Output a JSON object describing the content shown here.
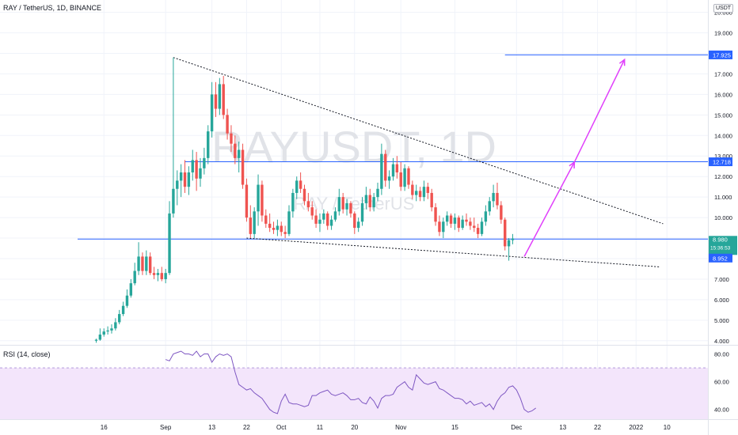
{
  "header": {
    "symbol": "RAY / TetherUS, 1D, BINANCE",
    "currency_unit": "USDT"
  },
  "rsi_label": "RSI (14, close)",
  "watermark": {
    "ticker": "RAYUSDT, 1D",
    "name": "RAY / TetherUS"
  },
  "colors": {
    "up": "#26a69a",
    "down": "#ef5350",
    "hline": "#2962ff",
    "projection": "#e040fb",
    "rsi_line": "#7e57c2",
    "rsi_band": "#f3e5fb",
    "watermark": "#e1e3e8",
    "grid": "#f0f3fa"
  },
  "price_labels": {
    "target": "17.925",
    "resistance": "12.718",
    "current": "8.980",
    "countdown": "15:36:53",
    "support": "8.952"
  },
  "chart_data": {
    "type": "candlestick",
    "title": "RAY / TetherUS, 1D, BINANCE",
    "price_axis": {
      "ylim": [
        3.8,
        20.6
      ],
      "ticks": [
        "4.000",
        "5.000",
        "6.000",
        "7.000",
        "8.000",
        "9.000",
        "10.000",
        "11.000",
        "12.000",
        "13.000",
        "14.000",
        "15.000",
        "16.000",
        "17.000",
        "18.000",
        "19.000",
        "20.000"
      ]
    },
    "time_axis": {
      "ticks": [
        {
          "label": "16",
          "day": 2
        },
        {
          "label": "Sep",
          "day": 18
        },
        {
          "label": "13",
          "day": 30
        },
        {
          "label": "22",
          "day": 39
        },
        {
          "label": "Oct",
          "day": 48
        },
        {
          "label": "11",
          "day": 58
        },
        {
          "label": "20",
          "day": 67
        },
        {
          "label": "Nov",
          "day": 79
        },
        {
          "label": "15",
          "day": 93
        },
        {
          "label": "Dec",
          "day": 109
        },
        {
          "label": "13",
          "day": 121
        },
        {
          "label": "22",
          "day": 130
        },
        {
          "label": "2022",
          "day": 140
        },
        {
          "label": "10",
          "day": 148
        }
      ]
    },
    "candles": [
      [
        4.0,
        4.1,
        3.9,
        4.05
      ],
      [
        4.05,
        4.6,
        4.0,
        4.3
      ],
      [
        4.3,
        4.6,
        4.2,
        4.45
      ],
      [
        4.45,
        4.7,
        4.3,
        4.5
      ],
      [
        4.5,
        4.8,
        4.35,
        4.6
      ],
      [
        4.6,
        5.1,
        4.5,
        4.9
      ],
      [
        4.9,
        5.5,
        4.8,
        5.3
      ],
      [
        5.3,
        5.9,
        5.2,
        5.7
      ],
      [
        5.7,
        6.5,
        5.6,
        6.2
      ],
      [
        6.2,
        7.0,
        6.1,
        6.8
      ],
      [
        6.8,
        7.8,
        6.7,
        7.4
      ],
      [
        7.4,
        8.8,
        7.2,
        8.1
      ],
      [
        8.1,
        8.3,
        7.2,
        7.4
      ],
      [
        7.4,
        8.4,
        7.2,
        8.1
      ],
      [
        8.1,
        8.3,
        7.2,
        7.3
      ],
      [
        7.3,
        7.6,
        7.0,
        7.2
      ],
      [
        7.2,
        7.5,
        6.9,
        7.3
      ],
      [
        7.3,
        7.6,
        6.9,
        7.0
      ],
      [
        7.0,
        7.5,
        6.8,
        7.3
      ],
      [
        7.3,
        10.8,
        7.2,
        10.2
      ],
      [
        10.2,
        17.8,
        10.0,
        11.4
      ],
      [
        11.4,
        12.3,
        10.6,
        11.8
      ],
      [
        11.8,
        12.6,
        11.0,
        12.2
      ],
      [
        12.2,
        12.8,
        11.2,
        11.5
      ],
      [
        11.5,
        12.5,
        11.1,
        12.2
      ],
      [
        12.2,
        13.3,
        11.8,
        12.8
      ],
      [
        12.8,
        13.2,
        11.3,
        11.9
      ],
      [
        11.9,
        12.9,
        11.5,
        12.4
      ],
      [
        12.4,
        13.4,
        12.1,
        12.9
      ],
      [
        12.9,
        14.5,
        12.6,
        14.2
      ],
      [
        14.2,
        16.6,
        13.9,
        16.0
      ],
      [
        16.0,
        16.6,
        14.9,
        15.3
      ],
      [
        15.3,
        16.8,
        15.0,
        16.5
      ],
      [
        16.5,
        16.9,
        14.8,
        15.0
      ],
      [
        15.0,
        15.3,
        13.8,
        14.1
      ],
      [
        14.1,
        14.5,
        13.2,
        13.6
      ],
      [
        13.6,
        14.0,
        12.6,
        12.9
      ],
      [
        12.9,
        13.7,
        12.2,
        13.3
      ],
      [
        13.3,
        13.6,
        11.4,
        11.6
      ],
      [
        11.6,
        11.9,
        9.8,
        10.0
      ],
      [
        10.0,
        10.6,
        9.0,
        9.2
      ],
      [
        9.2,
        10.5,
        9.0,
        10.3
      ],
      [
        10.3,
        12.1,
        9.6,
        11.6
      ],
      [
        11.6,
        11.8,
        9.8,
        10.1
      ],
      [
        10.1,
        10.4,
        9.5,
        9.7
      ],
      [
        9.7,
        10.2,
        9.3,
        9.5
      ],
      [
        9.5,
        9.8,
        9.2,
        9.4
      ],
      [
        9.4,
        9.9,
        9.1,
        9.6
      ],
      [
        9.6,
        9.8,
        9.1,
        9.3
      ],
      [
        9.3,
        9.6,
        9.0,
        9.2
      ],
      [
        9.2,
        10.6,
        9.1,
        10.3
      ],
      [
        10.3,
        11.4,
        10.0,
        11.2
      ],
      [
        11.2,
        12.0,
        10.9,
        11.8
      ],
      [
        11.8,
        12.2,
        11.2,
        11.4
      ],
      [
        11.4,
        11.6,
        10.6,
        10.8
      ],
      [
        10.8,
        11.2,
        10.3,
        10.5
      ],
      [
        10.5,
        10.8,
        9.9,
        10.1
      ],
      [
        10.1,
        10.4,
        9.5,
        9.7
      ],
      [
        9.7,
        10.2,
        9.3,
        9.9
      ],
      [
        9.9,
        10.4,
        9.7,
        10.2
      ],
      [
        10.2,
        10.3,
        9.4,
        9.6
      ],
      [
        9.6,
        10.1,
        9.4,
        9.9
      ],
      [
        9.9,
        10.5,
        9.8,
        10.3
      ],
      [
        10.3,
        11.4,
        10.1,
        11.0
      ],
      [
        11.0,
        11.2,
        10.2,
        10.4
      ],
      [
        10.4,
        10.9,
        10.1,
        10.7
      ],
      [
        10.7,
        10.8,
        10.0,
        10.2
      ],
      [
        10.2,
        10.3,
        9.2,
        9.5
      ],
      [
        9.5,
        10.0,
        9.3,
        9.8
      ],
      [
        9.8,
        11.0,
        9.6,
        10.7
      ],
      [
        10.7,
        11.5,
        10.4,
        11.1
      ],
      [
        11.1,
        11.4,
        10.3,
        10.5
      ],
      [
        10.5,
        11.2,
        10.3,
        11.0
      ],
      [
        11.0,
        11.7,
        10.8,
        11.4
      ],
      [
        11.4,
        13.6,
        11.1,
        13.1
      ],
      [
        13.1,
        13.3,
        11.5,
        11.8
      ],
      [
        11.8,
        12.3,
        11.4,
        12.0
      ],
      [
        12.0,
        12.9,
        11.8,
        12.6
      ],
      [
        12.6,
        13.0,
        11.9,
        12.2
      ],
      [
        12.2,
        12.7,
        11.3,
        11.5
      ],
      [
        11.5,
        12.6,
        11.3,
        12.4
      ],
      [
        12.4,
        12.5,
        11.4,
        11.6
      ],
      [
        11.6,
        11.8,
        10.9,
        11.1
      ],
      [
        11.1,
        11.6,
        10.8,
        11.3
      ],
      [
        11.3,
        11.5,
        10.8,
        11.0
      ],
      [
        11.0,
        11.8,
        10.8,
        11.5
      ],
      [
        11.5,
        11.7,
        10.9,
        11.2
      ],
      [
        11.2,
        11.4,
        10.3,
        10.5
      ],
      [
        10.5,
        10.7,
        9.6,
        9.8
      ],
      [
        9.8,
        10.1,
        9.1,
        9.3
      ],
      [
        9.3,
        10.0,
        9.0,
        9.8
      ],
      [
        9.8,
        10.3,
        9.6,
        10.1
      ],
      [
        10.1,
        10.2,
        9.5,
        9.7
      ],
      [
        9.7,
        10.2,
        9.4,
        10.0
      ],
      [
        10.0,
        10.1,
        9.3,
        9.5
      ],
      [
        9.5,
        10.1,
        9.4,
        9.9
      ],
      [
        9.9,
        10.2,
        9.6,
        9.8
      ],
      [
        9.8,
        10.0,
        9.4,
        9.6
      ],
      [
        9.6,
        10.0,
        9.3,
        9.5
      ],
      [
        9.5,
        9.7,
        9.0,
        9.2
      ],
      [
        9.2,
        10.0,
        9.1,
        9.8
      ],
      [
        9.8,
        10.6,
        9.6,
        10.3
      ],
      [
        10.3,
        11.0,
        10.1,
        10.8
      ],
      [
        10.8,
        11.6,
        10.5,
        11.2
      ],
      [
        11.2,
        11.7,
        10.4,
        10.6
      ],
      [
        10.6,
        10.8,
        9.7,
        9.9
      ],
      [
        9.9,
        10.0,
        8.4,
        8.6
      ],
      [
        8.6,
        9.0,
        7.9,
        8.9
      ],
      [
        8.9,
        9.2,
        8.7,
        8.98
      ]
    ],
    "indicator": {
      "name": "RSI (14, close)",
      "ylim": [
        33,
        86
      ],
      "ticks": [
        "40.00",
        "60.00",
        "80.00"
      ],
      "band": [
        30,
        70
      ],
      "start_day": 18,
      "values": [
        76,
        75,
        80,
        81,
        82,
        80,
        80,
        79,
        82,
        78,
        80,
        80,
        74,
        78,
        80,
        79,
        80,
        78,
        67,
        58,
        56,
        54,
        55,
        52,
        50,
        48,
        44,
        40,
        38,
        37,
        46,
        51,
        45,
        44,
        44,
        43,
        42,
        43,
        50,
        50,
        52,
        53,
        54,
        51,
        50,
        51,
        52,
        50,
        47,
        47,
        48,
        45,
        44,
        49,
        46,
        41,
        48,
        50,
        50,
        51,
        56,
        58,
        60,
        56,
        54,
        65,
        62,
        59,
        58,
        59,
        60,
        55,
        54,
        52,
        50,
        48,
        48,
        47,
        44,
        46,
        43,
        44,
        45,
        42,
        44,
        40,
        46,
        50,
        52,
        56,
        57,
        54,
        48,
        40,
        38,
        39,
        41
      ]
    },
    "annotations": {
      "resistance_level": 12.718,
      "support_level": 8.952,
      "target_level": 17.925,
      "upper_trendline": [
        {
          "day": 20,
          "price": 17.8
        },
        {
          "day": 147,
          "price": 9.7
        }
      ],
      "lower_trendline": [
        {
          "day": 39,
          "price": 9.0
        },
        {
          "day": 146,
          "price": 7.6
        }
      ],
      "projection_arrow": [
        {
          "day": 111,
          "price": 8.1
        },
        {
          "day": 124,
          "price": 12.7
        },
        {
          "day": 137,
          "price": 17.7
        }
      ]
    }
  }
}
